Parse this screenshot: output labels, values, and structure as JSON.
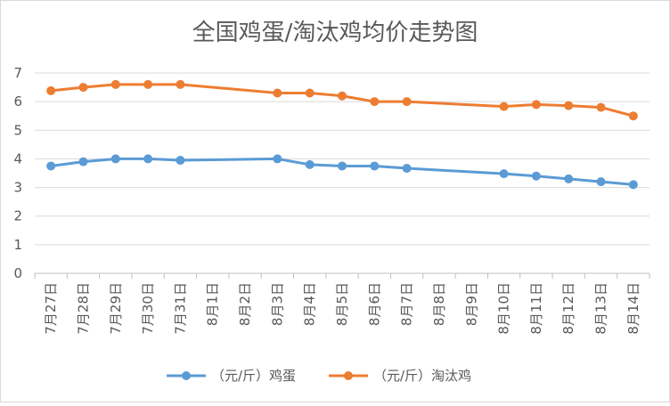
{
  "chart_data": {
    "type": "line",
    "title": "全国鸡蛋/淘汰鸡均价走势图",
    "xlabel": "",
    "ylabel": "",
    "ylim": [
      0,
      7
    ],
    "yticks": [
      0,
      1,
      2,
      3,
      4,
      5,
      6,
      7
    ],
    "grid": "horizontal",
    "legend_position": "bottom",
    "categories": [
      "7月27日",
      "7月28日",
      "7月29日",
      "7月30日",
      "7月31日",
      "8月1日",
      "8月2日",
      "8月3日",
      "8月4日",
      "8月5日",
      "8月6日",
      "8月7日",
      "8月8日",
      "8月9日",
      "8月10日",
      "8月11日",
      "8月12日",
      "8月13日",
      "8月14日"
    ],
    "series": [
      {
        "name": "（元/斤）鸡蛋",
        "color": "#5b9bd5",
        "values": [
          3.75,
          3.9,
          4.0,
          4.0,
          3.95,
          null,
          null,
          4.0,
          3.8,
          3.75,
          3.75,
          3.67,
          null,
          null,
          3.48,
          3.4,
          3.3,
          3.2,
          3.1
        ]
      },
      {
        "name": "（元/斤）淘汰鸡",
        "color": "#ed7d31",
        "values": [
          6.38,
          6.5,
          6.6,
          6.6,
          6.6,
          null,
          null,
          6.3,
          6.3,
          6.2,
          6.0,
          6.0,
          null,
          null,
          5.83,
          5.9,
          5.86,
          5.8,
          5.5
        ]
      }
    ]
  }
}
